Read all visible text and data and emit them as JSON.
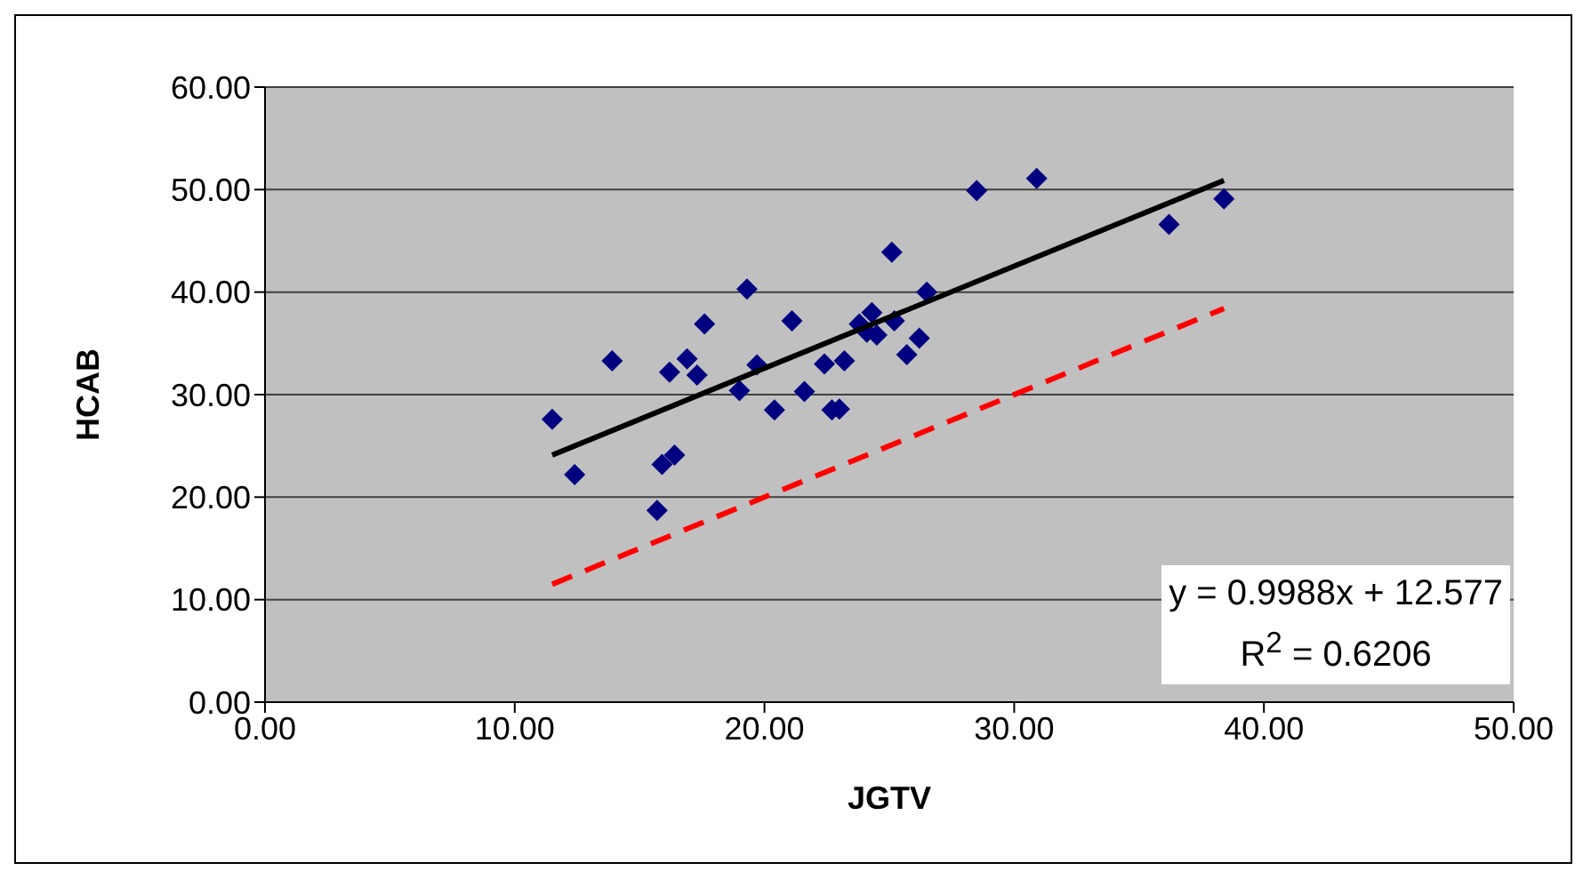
{
  "chart_data": {
    "type": "scatter",
    "xlabel": "JGTV",
    "ylabel": "HCAB",
    "xlim": [
      0,
      50
    ],
    "xticks": [
      {
        "value": 0,
        "label": "0.00"
      },
      {
        "value": 10,
        "label": "10.00"
      },
      {
        "value": 20,
        "label": "20.00"
      },
      {
        "value": 30,
        "label": "30.00"
      },
      {
        "value": 40,
        "label": "40.00"
      },
      {
        "value": 50,
        "label": "50.00"
      }
    ],
    "ylim": [
      0,
      60
    ],
    "yticks": [
      {
        "value": 0,
        "label": "0.00"
      },
      {
        "value": 10,
        "label": "10.00"
      },
      {
        "value": 20,
        "label": "20.00"
      },
      {
        "value": 30,
        "label": "30.00"
      },
      {
        "value": 40,
        "label": "40.00"
      },
      {
        "value": 50,
        "label": "50.00"
      },
      {
        "value": 60,
        "label": "60.00"
      }
    ],
    "grid": "y",
    "legend": false,
    "marker": "diamond",
    "series": [
      {
        "color": "#000080",
        "x": [
          11.5,
          12.4,
          13.9,
          15.7,
          15.9,
          16.4,
          16.2,
          16.9,
          17.3,
          17.6,
          19.0,
          19.3,
          19.7,
          20.4,
          21.1,
          21.6,
          22.4,
          22.7,
          23.0,
          23.2,
          23.8,
          24.3,
          24.5,
          24.1,
          25.2,
          25.1,
          25.7,
          26.2,
          26.5,
          28.5,
          30.9,
          36.2,
          38.4
        ],
        "values": [
          27.6,
          22.2,
          33.3,
          18.7,
          23.2,
          24.1,
          32.2,
          33.5,
          31.9,
          36.9,
          30.4,
          40.3,
          32.9,
          28.5,
          37.2,
          30.3,
          33.0,
          28.5,
          28.6,
          33.3,
          36.9,
          38.0,
          35.8,
          36.1,
          37.2,
          43.9,
          33.9,
          35.5,
          40.0,
          49.9,
          51.1,
          46.6,
          49.1
        ]
      },
      {
        "type": "line",
        "color": "#000000",
        "line_style": "solid",
        "marker": "none",
        "x": [
          11.5,
          38.4
        ],
        "values": [
          24.1,
          50.9
        ]
      },
      {
        "type": "line",
        "color": "#ff0000",
        "line_style": "dashed",
        "marker": "none",
        "x": [
          11.5,
          38.4
        ],
        "values": [
          11.5,
          38.4
        ]
      }
    ],
    "annotations": [
      "y = 0.9988x + 12.577",
      "R$^{2}$ = 0.6206"
    ]
  }
}
